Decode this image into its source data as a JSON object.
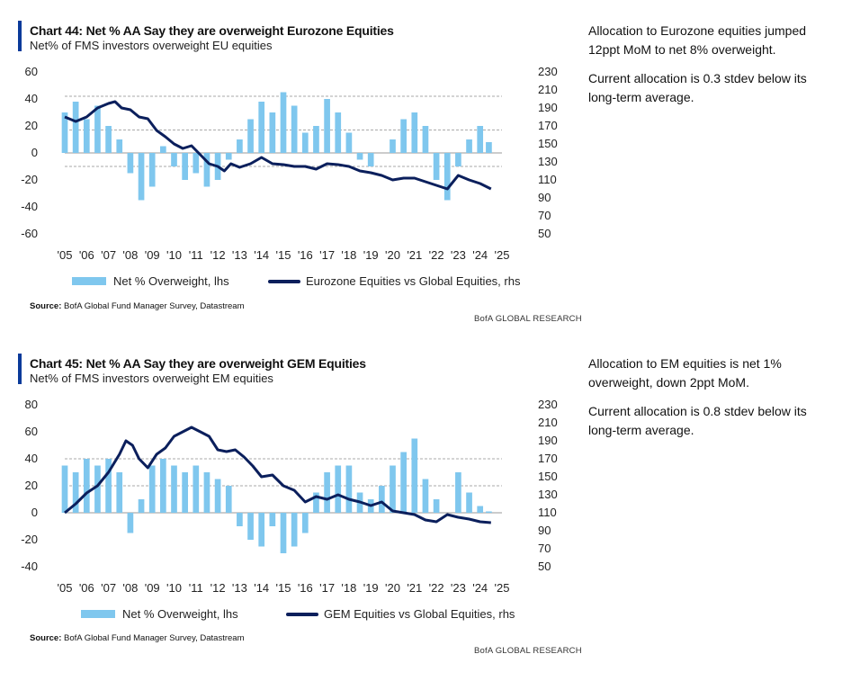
{
  "charts": [
    {
      "title": "Chart 44: Net % AA Say they are overweight Eurozone Equities",
      "subtitle": "Net% of FMS investors overweight EU equities",
      "legend_bar": "Net % Overweight, lhs",
      "legend_line": "Eurozone Equities vs Global Equities, rhs",
      "source_label": "Source:",
      "source_text": "BofA Global Fund Manager Survey, Datastream",
      "brand": "BofA GLOBAL RESEARCH",
      "notes": [
        "Allocation to Eurozone equities jumped 12ppt MoM to net 8% overweight.",
        "Current allocation is 0.3 stdev below its long-term average."
      ]
    },
    {
      "title": "Chart 45: Net % AA Say they are overweight GEM Equities",
      "subtitle": "Net% of FMS investors overweight EM equities",
      "legend_bar": "Net % Overweight, lhs",
      "legend_line": "GEM Equities vs Global Equities, rhs",
      "source_label": "Source:",
      "source_text": "BofA Global Fund Manager Survey, Datastream",
      "brand": "BofA GLOBAL RESEARCH",
      "notes": [
        "Allocation to EM equities is net 1% overweight, down 2ppt MoM.",
        "Current allocation is 0.8 stdev below its long-term average."
      ]
    }
  ],
  "chart_data": [
    {
      "type": "bar+line",
      "title": "Chart 44: Net % AA Say they are overweight Eurozone Equities",
      "x_ticks": [
        "'05",
        "'06",
        "'07",
        "'08",
        "'09",
        "'10",
        "'11",
        "'12",
        "'13",
        "'14",
        "'15",
        "'16",
        "'17",
        "'18",
        "'19",
        "'20",
        "'21",
        "'22",
        "'23",
        "'24",
        "'25"
      ],
      "xlim": [
        2005,
        2025
      ],
      "ylim_left": [
        -60,
        60
      ],
      "yticks_left": [
        60,
        40,
        20,
        0,
        -20,
        -40,
        -60
      ],
      "ylim_right": [
        50,
        230
      ],
      "yticks_right": [
        230,
        210,
        190,
        170,
        150,
        130,
        110,
        90,
        70,
        50
      ],
      "reference_lines_left": [
        42,
        17,
        -10
      ],
      "colors": {
        "bars": "#7fc7ee",
        "line": "#0b1f5c"
      },
      "bar_series": {
        "name": "Net % Overweight, lhs",
        "x": [
          2005.0,
          2005.5,
          2006.0,
          2006.5,
          2007.0,
          2007.5,
          2008.0,
          2008.5,
          2009.0,
          2009.5,
          2010.0,
          2010.5,
          2011.0,
          2011.5,
          2012.0,
          2012.5,
          2013.0,
          2013.5,
          2014.0,
          2014.5,
          2015.0,
          2015.5,
          2016.0,
          2016.5,
          2017.0,
          2017.5,
          2018.0,
          2018.5,
          2019.0,
          2019.5,
          2020.0,
          2020.5,
          2021.0,
          2021.5,
          2022.0,
          2022.5,
          2023.0,
          2023.5,
          2024.0,
          2024.4
        ],
        "y": [
          30,
          38,
          25,
          35,
          20,
          10,
          -15,
          -35,
          -25,
          5,
          -10,
          -20,
          -15,
          -25,
          -20,
          -5,
          10,
          25,
          38,
          30,
          45,
          35,
          15,
          20,
          40,
          30,
          15,
          -5,
          -10,
          0,
          10,
          25,
          30,
          20,
          -20,
          -35,
          -10,
          10,
          20,
          8
        ]
      },
      "line_series": {
        "name": "Eurozone Equities vs Global Equities, rhs",
        "x": [
          2005.0,
          2005.5,
          2006.0,
          2006.5,
          2007.0,
          2007.3,
          2007.6,
          2008.0,
          2008.4,
          2008.8,
          2009.2,
          2009.6,
          2010.0,
          2010.4,
          2010.8,
          2011.2,
          2011.6,
          2012.0,
          2012.3,
          2012.6,
          2013.0,
          2013.5,
          2014.0,
          2014.5,
          2015.0,
          2015.5,
          2016.0,
          2016.5,
          2017.0,
          2017.5,
          2018.0,
          2018.5,
          2019.0,
          2019.5,
          2020.0,
          2020.5,
          2021.0,
          2021.5,
          2022.0,
          2022.5,
          2023.0,
          2023.5,
          2024.0,
          2024.5
        ],
        "y": [
          180,
          175,
          180,
          190,
          195,
          197,
          190,
          188,
          180,
          178,
          165,
          158,
          150,
          145,
          148,
          138,
          128,
          125,
          120,
          128,
          124,
          128,
          135,
          128,
          127,
          125,
          125,
          122,
          128,
          127,
          125,
          120,
          118,
          115,
          110,
          112,
          112,
          108,
          104,
          100,
          115,
          110,
          106,
          100
        ]
      }
    },
    {
      "type": "bar+line",
      "title": "Chart 45: Net % AA Say they are overweight GEM Equities",
      "x_ticks": [
        "'05",
        "'06",
        "'07",
        "'08",
        "'09",
        "'10",
        "'11",
        "'12",
        "'13",
        "'14",
        "'15",
        "'16",
        "'17",
        "'18",
        "'19",
        "'20",
        "'21",
        "'22",
        "'23",
        "'24",
        "'25"
      ],
      "xlim": [
        2005,
        2025
      ],
      "ylim_left": [
        -40,
        80
      ],
      "yticks_left": [
        80,
        60,
        40,
        20,
        0,
        -20,
        -40
      ],
      "ylim_right": [
        50,
        230
      ],
      "yticks_right": [
        230,
        210,
        190,
        170,
        150,
        130,
        110,
        90,
        70,
        50
      ],
      "reference_lines_left": [
        40,
        20
      ],
      "colors": {
        "bars": "#7fc7ee",
        "line": "#0b1f5c"
      },
      "bar_series": {
        "name": "Net % Overweight, lhs",
        "x": [
          2005.0,
          2005.5,
          2006.0,
          2006.5,
          2007.0,
          2007.5,
          2008.0,
          2008.5,
          2009.0,
          2009.5,
          2010.0,
          2010.5,
          2011.0,
          2011.5,
          2012.0,
          2012.5,
          2013.0,
          2013.5,
          2014.0,
          2014.5,
          2015.0,
          2015.5,
          2016.0,
          2016.5,
          2017.0,
          2017.5,
          2018.0,
          2018.5,
          2019.0,
          2019.5,
          2020.0,
          2020.5,
          2021.0,
          2021.5,
          2022.0,
          2022.5,
          2023.0,
          2023.5,
          2024.0,
          2024.4
        ],
        "y": [
          35,
          30,
          40,
          35,
          40,
          30,
          -15,
          10,
          35,
          40,
          35,
          30,
          35,
          30,
          25,
          20,
          -10,
          -20,
          -25,
          -10,
          -30,
          -25,
          -15,
          15,
          30,
          35,
          35,
          15,
          10,
          20,
          35,
          45,
          55,
          25,
          10,
          0,
          30,
          15,
          5,
          1
        ]
      },
      "line_series": {
        "name": "GEM Equities vs Global Equities, rhs",
        "x": [
          2005.0,
          2005.5,
          2006.0,
          2006.5,
          2007.0,
          2007.5,
          2007.8,
          2008.1,
          2008.4,
          2008.8,
          2009.2,
          2009.6,
          2010.0,
          2010.4,
          2010.8,
          2011.2,
          2011.6,
          2012.0,
          2012.4,
          2012.8,
          2013.2,
          2013.6,
          2014.0,
          2014.5,
          2015.0,
          2015.5,
          2016.0,
          2016.5,
          2017.0,
          2017.5,
          2018.0,
          2018.5,
          2019.0,
          2019.5,
          2020.0,
          2020.5,
          2021.0,
          2021.5,
          2022.0,
          2022.5,
          2023.0,
          2023.5,
          2024.0,
          2024.5
        ],
        "y": [
          110,
          120,
          132,
          140,
          155,
          175,
          190,
          185,
          170,
          160,
          175,
          182,
          195,
          200,
          205,
          200,
          195,
          180,
          178,
          180,
          172,
          162,
          150,
          152,
          140,
          135,
          122,
          128,
          125,
          130,
          125,
          122,
          118,
          122,
          112,
          110,
          108,
          102,
          100,
          108,
          105,
          103,
          100,
          99
        ]
      }
    }
  ]
}
